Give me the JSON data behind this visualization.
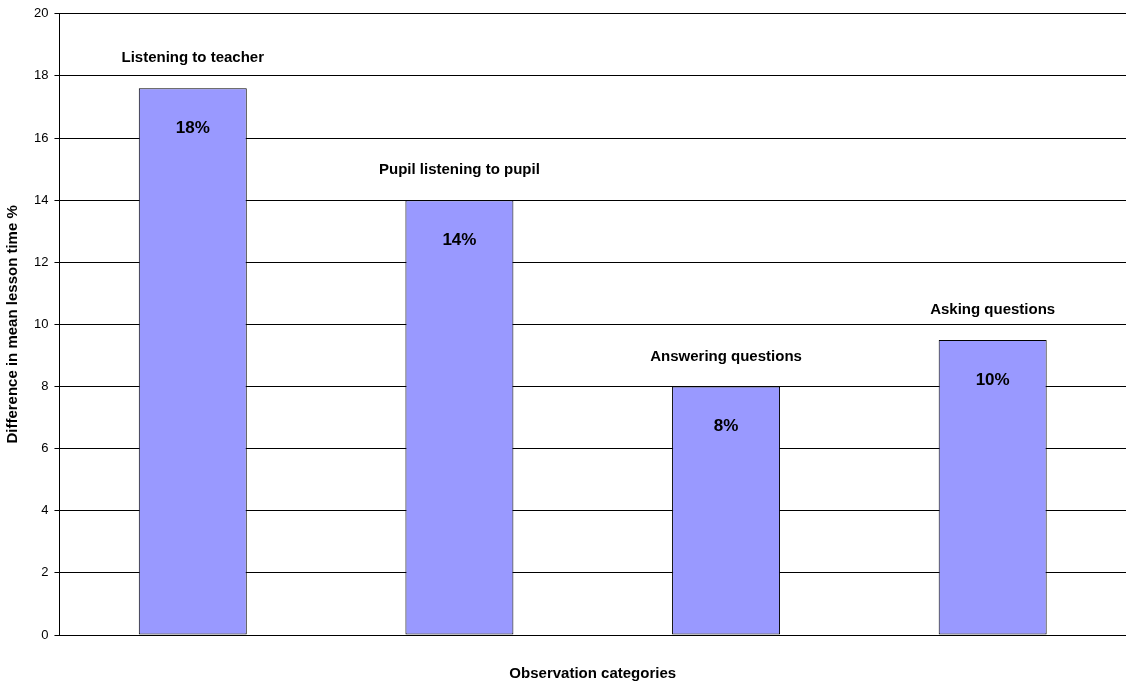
{
  "chart_data": {
    "type": "bar",
    "categories": [
      "Listening to teacher",
      "Pupil listening to pupil",
      "Answering questions",
      "Asking questions"
    ],
    "values": [
      17.6,
      14.0,
      8.0,
      9.5
    ],
    "color": "#9999ff",
    "value_labels": [
      "18%",
      "14%",
      "8%",
      "10%"
    ],
    "xlabel": "Observation categories",
    "ylabel": "Difference in mean lesson time %",
    "ylim": [
      0,
      20
    ],
    "yticks": [
      0,
      2,
      4,
      6,
      8,
      10,
      12,
      14,
      16,
      18,
      20
    ],
    "grid": "y",
    "tick_labels": "y"
  }
}
